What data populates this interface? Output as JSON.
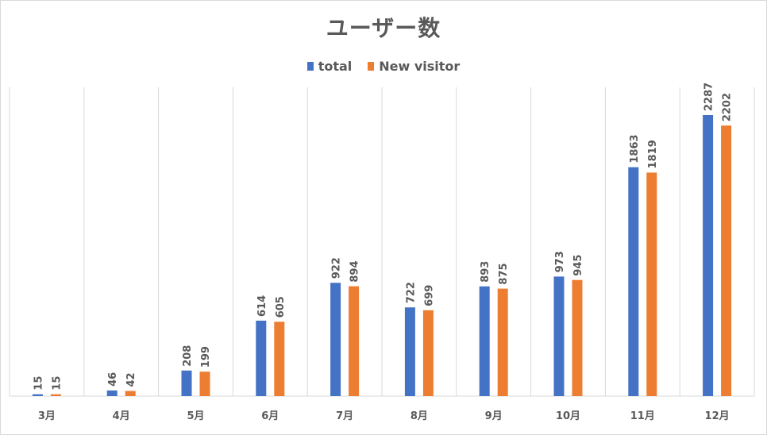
{
  "chart_data": {
    "type": "bar",
    "title": "ユーザー数",
    "categories": [
      "3月",
      "4月",
      "5月",
      "6月",
      "7月",
      "8月",
      "9月",
      "10月",
      "11月",
      "12月"
    ],
    "series": [
      {
        "name": "total",
        "color": "#4472C4",
        "values": [
          15,
          46,
          208,
          614,
          922,
          722,
          893,
          973,
          1863,
          2287
        ]
      },
      {
        "name": "New visitor",
        "color": "#ED7D31",
        "values": [
          15,
          42,
          199,
          605,
          894,
          699,
          875,
          945,
          1819,
          2202
        ]
      }
    ],
    "xlabel": "",
    "ylabel": "",
    "ylim": [
      0,
      2600
    ],
    "grid": "vertical category dividers",
    "legend_position": "top",
    "data_labels": "vertical, above bars"
  }
}
